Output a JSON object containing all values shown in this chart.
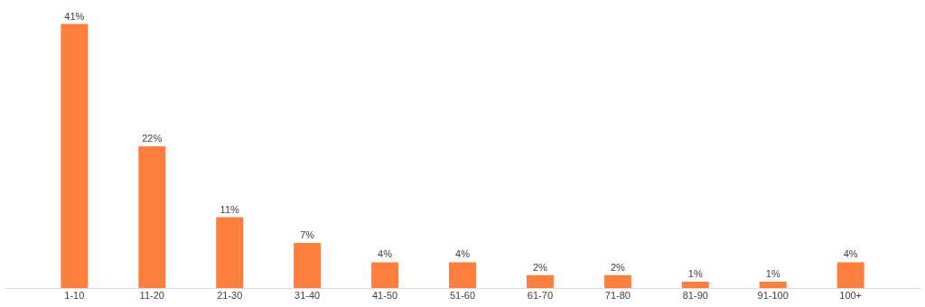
{
  "chart_data": {
    "type": "bar",
    "categories": [
      "1-10",
      "11-20",
      "21-30",
      "31-40",
      "41-50",
      "51-60",
      "61-70",
      "71-80",
      "81-90",
      "91-100",
      "100+"
    ],
    "values": [
      41,
      22,
      11,
      7,
      4,
      4,
      2,
      2,
      1,
      1,
      4
    ],
    "value_labels": [
      "41%",
      "22%",
      "11%",
      "7%",
      "4%",
      "4%",
      "2%",
      "2%",
      "1%",
      "1%",
      "4%"
    ],
    "color": "#ff7f3f",
    "grid": false
  }
}
